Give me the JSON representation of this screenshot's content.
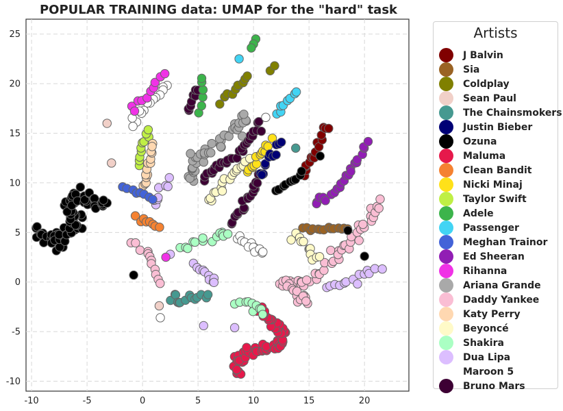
{
  "chart_data": {
    "type": "scatter",
    "title": "POPULAR TRAINING data: UMAP for the \"hard\" task",
    "xlabel": "",
    "ylabel": "",
    "xlim": [
      -10.5,
      24
    ],
    "ylim": [
      -11,
      26.5
    ],
    "x_ticks": [
      -10,
      -5,
      0,
      5,
      10,
      15,
      20
    ],
    "y_ticks": [
      -10,
      -5,
      0,
      5,
      10,
      15,
      20,
      25
    ],
    "grid": true,
    "legend_title": "Artists",
    "legend_position": "right",
    "series": [
      {
        "name": "J Balvin",
        "color": "#800000"
      },
      {
        "name": "Sia",
        "color": "#9a6324"
      },
      {
        "name": "Coldplay",
        "color": "#808000"
      },
      {
        "name": "Sean Paul",
        "color": "#f1d0c8"
      },
      {
        "name": "The Chainsmokers",
        "color": "#469990"
      },
      {
        "name": "Justin Bieber",
        "color": "#000075"
      },
      {
        "name": "Ozuna",
        "color": "#000000"
      },
      {
        "name": "Maluma",
        "color": "#e6194b"
      },
      {
        "name": "Clean Bandit",
        "color": "#f58231"
      },
      {
        "name": "Nicki Minaj",
        "color": "#ffe119"
      },
      {
        "name": "Taylor Swift",
        "color": "#bfef45"
      },
      {
        "name": "Adele",
        "color": "#3cb44b"
      },
      {
        "name": "Passenger",
        "color": "#42d4f4"
      },
      {
        "name": "Meghan Trainor",
        "color": "#4363d8"
      },
      {
        "name": "Ed Sheeran",
        "color": "#911eb4"
      },
      {
        "name": "Rihanna",
        "color": "#f032e6"
      },
      {
        "name": "Ariana Grande",
        "color": "#a9a9a9"
      },
      {
        "name": "Daddy Yankee",
        "color": "#fabed4"
      },
      {
        "name": "Katy Perry",
        "color": "#ffd8b1"
      },
      {
        "name": "Beyoncé",
        "color": "#fffac8"
      },
      {
        "name": "Shakira",
        "color": "#aaffc3"
      },
      {
        "name": "Dua Lipa",
        "color": "#dcbeff"
      },
      {
        "name": "Maroon 5",
        "color": "#ffffff"
      },
      {
        "name": "Bruno Mars",
        "color": "#3d0034"
      }
    ],
    "clusters": [
      {
        "series": "Ozuna",
        "path": [
          [
            -9.5,
            5
          ],
          [
            -8.5,
            4.5
          ],
          [
            -7.5,
            4.3
          ],
          [
            -6.5,
            4.8
          ],
          [
            -5.8,
            5.8
          ],
          [
            -6.3,
            6.8
          ],
          [
            -6.8,
            7.8
          ],
          [
            -5.8,
            8.5
          ],
          [
            -4.5,
            8.3
          ],
          [
            -3.5,
            7.5
          ]
        ],
        "n": 90,
        "spread": 0.45
      },
      {
        "series": "Maluma",
        "path": [
          [
            8.7,
            -9.5
          ],
          [
            8.5,
            -8
          ],
          [
            9.5,
            -7
          ],
          [
            11,
            -6.8
          ],
          [
            12.3,
            -6.2
          ],
          [
            12.7,
            -5
          ],
          [
            11.5,
            -3.8
          ],
          [
            10.5,
            -2.5
          ]
        ],
        "n": 70,
        "spread": 0.35
      },
      {
        "series": "Ariana Grande",
        "path": [
          [
            4.5,
            10.5
          ],
          [
            4.5,
            12
          ],
          [
            6,
            13.5
          ],
          [
            8,
            15
          ],
          [
            9.5,
            16.5
          ]
        ],
        "n": 45,
        "spread": 0.35
      },
      {
        "series": "Bruno Mars",
        "path": [
          [
            5.5,
            10.5
          ],
          [
            6.5,
            11.5
          ],
          [
            8,
            12.5
          ],
          [
            9.5,
            14
          ],
          [
            10.5,
            16
          ]
        ],
        "n": 30,
        "spread": 0.2
      },
      {
        "series": "Bruno Mars",
        "path": [
          [
            8,
            6
          ],
          [
            9,
            7.5
          ],
          [
            9.8,
            9
          ],
          [
            10.5,
            10.5
          ]
        ],
        "n": 20,
        "spread": 0.2
      },
      {
        "series": "Beyoncé",
        "path": [
          [
            6,
            8
          ],
          [
            7,
            9.5
          ],
          [
            8.3,
            11
          ],
          [
            9.5,
            12.5
          ]
        ],
        "n": 18,
        "spread": 0.2
      },
      {
        "series": "Nicki Minaj",
        "path": [
          [
            9.5,
            11
          ],
          [
            10.5,
            12.5
          ],
          [
            11.5,
            14.5
          ]
        ],
        "n": 14,
        "spread": 0.2
      },
      {
        "series": "Justin Bieber",
        "path": [
          [
            10.5,
            10.5
          ],
          [
            11.5,
            12.5
          ],
          [
            12.5,
            14
          ]
        ],
        "n": 12,
        "spread": 0.2
      },
      {
        "series": "J Balvin",
        "path": [
          [
            14.5,
            11
          ],
          [
            15.5,
            13
          ],
          [
            16.5,
            16
          ]
        ],
        "n": 16,
        "spread": 0.2
      },
      {
        "series": "Ed Sheeran",
        "path": [
          [
            15.5,
            8
          ],
          [
            17.5,
            9
          ],
          [
            19,
            11.5
          ],
          [
            20.2,
            14
          ]
        ],
        "n": 22,
        "spread": 0.2
      },
      {
        "series": "Ozuna",
        "path": [
          [
            12,
            9
          ],
          [
            13,
            10
          ],
          [
            14.5,
            11
          ]
        ],
        "n": 10,
        "spread": 0.2
      },
      {
        "series": "Daddy Yankee",
        "path": [
          [
            12.5,
            0
          ],
          [
            15,
            0
          ],
          [
            17.5,
            2.5
          ],
          [
            19.5,
            5
          ],
          [
            21.5,
            8
          ]
        ],
        "n": 45,
        "spread": 0.35
      },
      {
        "series": "Daddy Yankee",
        "path": [
          [
            12.5,
            0
          ],
          [
            14,
            -1.5
          ],
          [
            15,
            -2
          ]
        ],
        "n": 15,
        "spread": 0.3
      },
      {
        "series": "Dua Lipa",
        "path": [
          [
            16.5,
            -0.5
          ],
          [
            19,
            0
          ],
          [
            21.5,
            1.5
          ]
        ],
        "n": 14,
        "spread": 0.2
      },
      {
        "series": "Sia",
        "path": [
          [
            14.5,
            5.5
          ],
          [
            16.5,
            5.3
          ],
          [
            18.5,
            5.2
          ]
        ],
        "n": 14,
        "spread": 0.15
      },
      {
        "series": "Beyoncé",
        "path": [
          [
            13.5,
            4.5
          ],
          [
            15,
            3.5
          ],
          [
            16,
            2.5
          ]
        ],
        "n": 12,
        "spread": 0.25
      },
      {
        "series": "Maroon 5",
        "path": [
          [
            8.5,
            4.5
          ],
          [
            9.8,
            3.5
          ],
          [
            11,
            3
          ]
        ],
        "n": 12,
        "spread": 0.25
      },
      {
        "series": "Shakira",
        "path": [
          [
            3.5,
            3.5
          ],
          [
            5,
            4
          ],
          [
            7,
            4.6
          ],
          [
            7.5,
            5
          ]
        ],
        "n": 14,
        "spread": 0.2
      },
      {
        "series": "Dua Lipa",
        "path": [
          [
            4.7,
            2
          ],
          [
            5.7,
            0.8
          ],
          [
            6.7,
            0
          ]
        ],
        "n": 10,
        "spread": 0.2
      },
      {
        "series": "The Chainsmokers",
        "path": [
          [
            2.5,
            -1.5
          ],
          [
            4,
            -2
          ],
          [
            6,
            -1
          ]
        ],
        "n": 14,
        "spread": 0.25
      },
      {
        "series": "Shakira",
        "path": [
          [
            8.5,
            -1.8
          ],
          [
            10,
            -2.5
          ],
          [
            11,
            -3
          ]
        ],
        "n": 10,
        "spread": 0.2
      },
      {
        "series": "Maroon 5",
        "path": [
          [
            2.2,
            19.8
          ],
          [
            0.5,
            18
          ],
          [
            -1,
            16
          ]
        ],
        "n": 14,
        "spread": 0.2
      },
      {
        "series": "Rihanna",
        "path": [
          [
            -1,
            17.5
          ],
          [
            0.5,
            19
          ],
          [
            2,
            21
          ]
        ],
        "n": 10,
        "spread": 0.15
      },
      {
        "series": "Taylor Swift",
        "path": [
          [
            -0.5,
            12
          ],
          [
            0,
            13.5
          ],
          [
            0.5,
            15.3
          ]
        ],
        "n": 10,
        "spread": 0.15
      },
      {
        "series": "Katy Perry",
        "path": [
          [
            0,
            9.5
          ],
          [
            0.5,
            11.5
          ],
          [
            1,
            14
          ]
        ],
        "n": 14,
        "spread": 0.2
      },
      {
        "series": "Dua Lipa",
        "path": [
          [
            1,
            8
          ],
          [
            1.5,
            9
          ],
          [
            2.5,
            10.5
          ]
        ],
        "n": 8,
        "spread": 0.2
      },
      {
        "series": "Meghan Trainor",
        "path": [
          [
            -1.8,
            9.5
          ],
          [
            -0.5,
            9
          ],
          [
            1,
            8.5
          ]
        ],
        "n": 8,
        "spread": 0.15
      },
      {
        "series": "Bruno Mars",
        "path": [
          [
            4,
            17
          ],
          [
            4.5,
            18.5
          ],
          [
            5,
            19.5
          ]
        ],
        "n": 8,
        "spread": 0.15
      },
      {
        "series": "Adele",
        "path": [
          [
            5,
            17
          ],
          [
            5.5,
            19
          ],
          [
            5.2,
            20.5
          ]
        ],
        "n": 6,
        "spread": 0.15
      },
      {
        "series": "Coldplay",
        "path": [
          [
            7,
            18
          ],
          [
            8.5,
            19.5
          ],
          [
            9.5,
            20.5
          ]
        ],
        "n": 10,
        "spread": 0.2
      },
      {
        "series": "Passenger",
        "path": [
          [
            12,
            17
          ],
          [
            13,
            18
          ],
          [
            13.8,
            19.2
          ]
        ],
        "n": 8,
        "spread": 0.15
      },
      {
        "series": "Clean Bandit",
        "path": [
          [
            -0.5,
            6.5
          ],
          [
            0.5,
            6
          ],
          [
            1.5,
            5.5
          ]
        ],
        "n": 8,
        "spread": 0.15
      },
      {
        "series": "Daddy Yankee",
        "path": [
          [
            -1,
            4
          ],
          [
            0.5,
            3
          ],
          [
            1,
            1.5
          ],
          [
            1.5,
            0
          ]
        ],
        "n": 12,
        "spread": 0.25
      }
    ],
    "points": [
      {
        "series": "Adele",
        "x": 10.2,
        "y": 24.5
      },
      {
        "series": "Adele",
        "x": 10,
        "y": 24
      },
      {
        "series": "Adele",
        "x": 9.8,
        "y": 23.6
      },
      {
        "series": "Passenger",
        "x": 8.7,
        "y": 22.5
      },
      {
        "series": "Coldplay",
        "x": 11.5,
        "y": 21.3
      },
      {
        "series": "Coldplay",
        "x": 11.9,
        "y": 21.8
      },
      {
        "series": "Sean Paul",
        "x": -3.2,
        "y": 16
      },
      {
        "series": "Sean Paul",
        "x": -2.8,
        "y": 12
      },
      {
        "series": "Sean Paul",
        "x": 1.5,
        "y": -2.4
      },
      {
        "series": "Maroon 5",
        "x": 1.6,
        "y": -3.6
      },
      {
        "series": "Ozuna",
        "x": 20,
        "y": 2.6
      },
      {
        "series": "Ozuna",
        "x": 18.5,
        "y": 5.2
      },
      {
        "series": "Ozuna",
        "x": -0.8,
        "y": 0.7
      },
      {
        "series": "The Chainsmokers",
        "x": 13.8,
        "y": 13.5
      },
      {
        "series": "Maroon 5",
        "x": 11.1,
        "y": 16.6
      },
      {
        "series": "Bruno Mars",
        "x": 10.7,
        "y": 15.2
      },
      {
        "series": "Ozuna",
        "x": 16,
        "y": 12.7
      },
      {
        "series": "Dua Lipa",
        "x": 5.5,
        "y": -4.4
      },
      {
        "series": "Dua Lipa",
        "x": 8.3,
        "y": -4.6
      },
      {
        "series": "Dua Lipa",
        "x": 2.5,
        "y": 2.8
      },
      {
        "series": "Rihanna",
        "x": 2.1,
        "y": 2.5
      }
    ]
  }
}
